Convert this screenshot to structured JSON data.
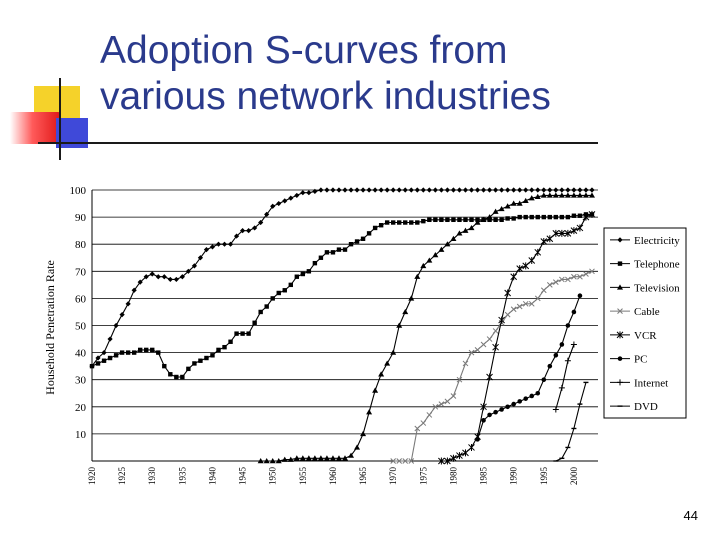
{
  "slide": {
    "title_line1": "Adoption S-curves from",
    "title_line2": "various network industries",
    "page_number": "44"
  },
  "chart_data": {
    "type": "line",
    "title": "",
    "xlabel": "",
    "ylabel": "Household Penetration Rate",
    "ylim": [
      0,
      100
    ],
    "xlim": [
      1920,
      2004
    ],
    "yticks": [
      10,
      20,
      30,
      40,
      50,
      60,
      70,
      80,
      90,
      100
    ],
    "xticks": [
      1920,
      1925,
      1930,
      1935,
      1940,
      1945,
      1950,
      1955,
      1960,
      1965,
      1970,
      1975,
      1980,
      1985,
      1990,
      1995,
      2000
    ],
    "grid": "horizontal",
    "legend_position": "right",
    "series": [
      {
        "name": "Electricity",
        "marker": "diamond",
        "color": "#000000",
        "x": [
          1920,
          1921,
          1922,
          1923,
          1924,
          1925,
          1926,
          1927,
          1928,
          1929,
          1930,
          1931,
          1932,
          1933,
          1934,
          1935,
          1936,
          1937,
          1938,
          1939,
          1940,
          1941,
          1942,
          1943,
          1944,
          1945,
          1946,
          1947,
          1948,
          1949,
          1950,
          1951,
          1952,
          1953,
          1954,
          1955,
          1956,
          1957,
          1958,
          1959,
          1960,
          1961,
          1962,
          1963,
          1964,
          1965,
          1966,
          1967,
          1968,
          1969,
          1970,
          1971,
          1972,
          1973,
          1974,
          1975,
          1976,
          1977,
          1978,
          1979,
          1980,
          1981,
          1982,
          1983,
          1984,
          1985,
          1986,
          1987,
          1988,
          1989,
          1990,
          1991,
          1992,
          1993,
          1994,
          1995,
          1996,
          1997,
          1998,
          1999,
          2000,
          2001,
          2002,
          2003
        ],
        "y": [
          35,
          38,
          40,
          45,
          50,
          54,
          58,
          63,
          66,
          68,
          69,
          68,
          68,
          67,
          67,
          68,
          70,
          72,
          75,
          78,
          79,
          80,
          80,
          80,
          83,
          85,
          85,
          86,
          88,
          91,
          94,
          95,
          96,
          97,
          98,
          99,
          99,
          99.5,
          100,
          100,
          100,
          100,
          100,
          100,
          100,
          100,
          100,
          100,
          100,
          100,
          100,
          100,
          100,
          100,
          100,
          100,
          100,
          100,
          100,
          100,
          100,
          100,
          100,
          100,
          100,
          100,
          100,
          100,
          100,
          100,
          100,
          100,
          100,
          100,
          100,
          100,
          100,
          100,
          100,
          100,
          100,
          100,
          100,
          100
        ]
      },
      {
        "name": "Telephone",
        "marker": "square",
        "color": "#000000",
        "x": [
          1920,
          1921,
          1922,
          1923,
          1924,
          1925,
          1926,
          1927,
          1928,
          1929,
          1930,
          1931,
          1932,
          1933,
          1934,
          1935,
          1936,
          1937,
          1938,
          1939,
          1940,
          1941,
          1942,
          1943,
          1944,
          1945,
          1946,
          1947,
          1948,
          1949,
          1950,
          1951,
          1952,
          1953,
          1954,
          1955,
          1956,
          1957,
          1958,
          1959,
          1960,
          1961,
          1962,
          1963,
          1964,
          1965,
          1966,
          1967,
          1968,
          1969,
          1970,
          1971,
          1972,
          1973,
          1974,
          1975,
          1976,
          1977,
          1978,
          1979,
          1980,
          1981,
          1982,
          1983,
          1984,
          1985,
          1986,
          1987,
          1988,
          1989,
          1990,
          1991,
          1992,
          1993,
          1994,
          1995,
          1996,
          1997,
          1998,
          1999,
          2000,
          2001,
          2002,
          2003
        ],
        "y": [
          35,
          36,
          37,
          38,
          39,
          40,
          40,
          40,
          41,
          41,
          41,
          40,
          35,
          32,
          31,
          31,
          34,
          36,
          37,
          38,
          39,
          41,
          42,
          44,
          47,
          47,
          47,
          51,
          55,
          57,
          60,
          62,
          63,
          65,
          68,
          69,
          70,
          73,
          75,
          77,
          77,
          78,
          78,
          80,
          81,
          82,
          84,
          86,
          87,
          88,
          88,
          88,
          88,
          88,
          88,
          88.5,
          89,
          89,
          89,
          89,
          89,
          89,
          89,
          89,
          89,
          89,
          89,
          89,
          89,
          89.5,
          89.5,
          90,
          90,
          90,
          90,
          90,
          90,
          90,
          90,
          90,
          90.5,
          90.5,
          91,
          91
        ]
      },
      {
        "name": "Television",
        "marker": "triangle",
        "color": "#000000",
        "x": [
          1948,
          1949,
          1950,
          1951,
          1952,
          1953,
          1954,
          1955,
          1956,
          1957,
          1958,
          1959,
          1960,
          1961,
          1962,
          1963,
          1964,
          1965,
          1966,
          1967,
          1968,
          1969,
          1970,
          1971,
          1972,
          1973,
          1974,
          1975,
          1976,
          1977,
          1978,
          1979,
          1980,
          1981,
          1982,
          1983,
          1984,
          1985,
          1986,
          1987,
          1988,
          1989,
          1990,
          1991,
          1992,
          1993,
          1994,
          1995,
          1996,
          1997,
          1998,
          1999,
          2000,
          2001,
          2002,
          2003
        ],
        "y": [
          0,
          0,
          0,
          0,
          0.5,
          0.5,
          1,
          1,
          1,
          1,
          1,
          1,
          1,
          1,
          1,
          2,
          5,
          10,
          18,
          26,
          32,
          36,
          40,
          50,
          55,
          60,
          68,
          72,
          74,
          76,
          78,
          80,
          82,
          84,
          85,
          86,
          88,
          89,
          90,
          92,
          93,
          94,
          95,
          95,
          96,
          97,
          97.5,
          98,
          98,
          98,
          98,
          98,
          98,
          98,
          98,
          98
        ]
      },
      {
        "name": "Cable",
        "marker": "x",
        "color": "#7a7a7a",
        "x": [
          1970,
          1971,
          1972,
          1973,
          1974,
          1975,
          1976,
          1977,
          1978,
          1979,
          1980,
          1981,
          1982,
          1983,
          1984,
          1985,
          1986,
          1987,
          1988,
          1989,
          1990,
          1991,
          1992,
          1993,
          1994,
          1995,
          1996,
          1997,
          1998,
          1999,
          2000,
          2001,
          2002,
          2003
        ],
        "y": [
          0,
          0,
          0,
          0,
          12,
          14,
          17,
          20,
          21,
          22,
          24,
          30,
          36,
          40,
          41,
          43,
          45,
          48,
          51,
          54,
          56,
          57,
          58,
          58,
          60,
          63,
          65,
          66,
          67,
          67,
          68,
          68,
          69,
          70
        ]
      },
      {
        "name": "VCR",
        "marker": "asterisk",
        "color": "#000000",
        "x": [
          1978,
          1979,
          1980,
          1981,
          1982,
          1983,
          1984,
          1985,
          1986,
          1987,
          1988,
          1989,
          1990,
          1991,
          1992,
          1993,
          1994,
          1995,
          1996,
          1997,
          1998,
          1999,
          2000,
          2001,
          2002,
          2003
        ],
        "y": [
          0,
          0,
          1,
          2,
          3,
          5,
          9,
          20,
          31,
          42,
          52,
          62,
          68,
          71,
          72,
          74,
          77,
          81,
          82,
          84,
          84,
          84,
          85,
          86,
          90,
          91
        ]
      },
      {
        "name": "PC",
        "marker": "circle",
        "color": "#000000",
        "x": [
          1984,
          1985,
          1986,
          1987,
          1988,
          1989,
          1990,
          1991,
          1992,
          1993,
          1994,
          1995,
          1996,
          1997,
          1998,
          1999,
          2000,
          2001
        ],
        "y": [
          8,
          15,
          17,
          18,
          19,
          20,
          21,
          22,
          23,
          24,
          25,
          30,
          35,
          39,
          43,
          50,
          55,
          61
        ]
      },
      {
        "name": "Internet",
        "marker": "plus",
        "color": "#000000",
        "x": [
          1997,
          1998,
          1999,
          2000
        ],
        "y": [
          19,
          27,
          37,
          43
        ]
      },
      {
        "name": "DVD",
        "marker": "dash",
        "color": "#000000",
        "x": [
          1997,
          1998,
          1999,
          2000,
          2001,
          2002
        ],
        "y": [
          0,
          1,
          5,
          12,
          21,
          29
        ]
      }
    ]
  }
}
